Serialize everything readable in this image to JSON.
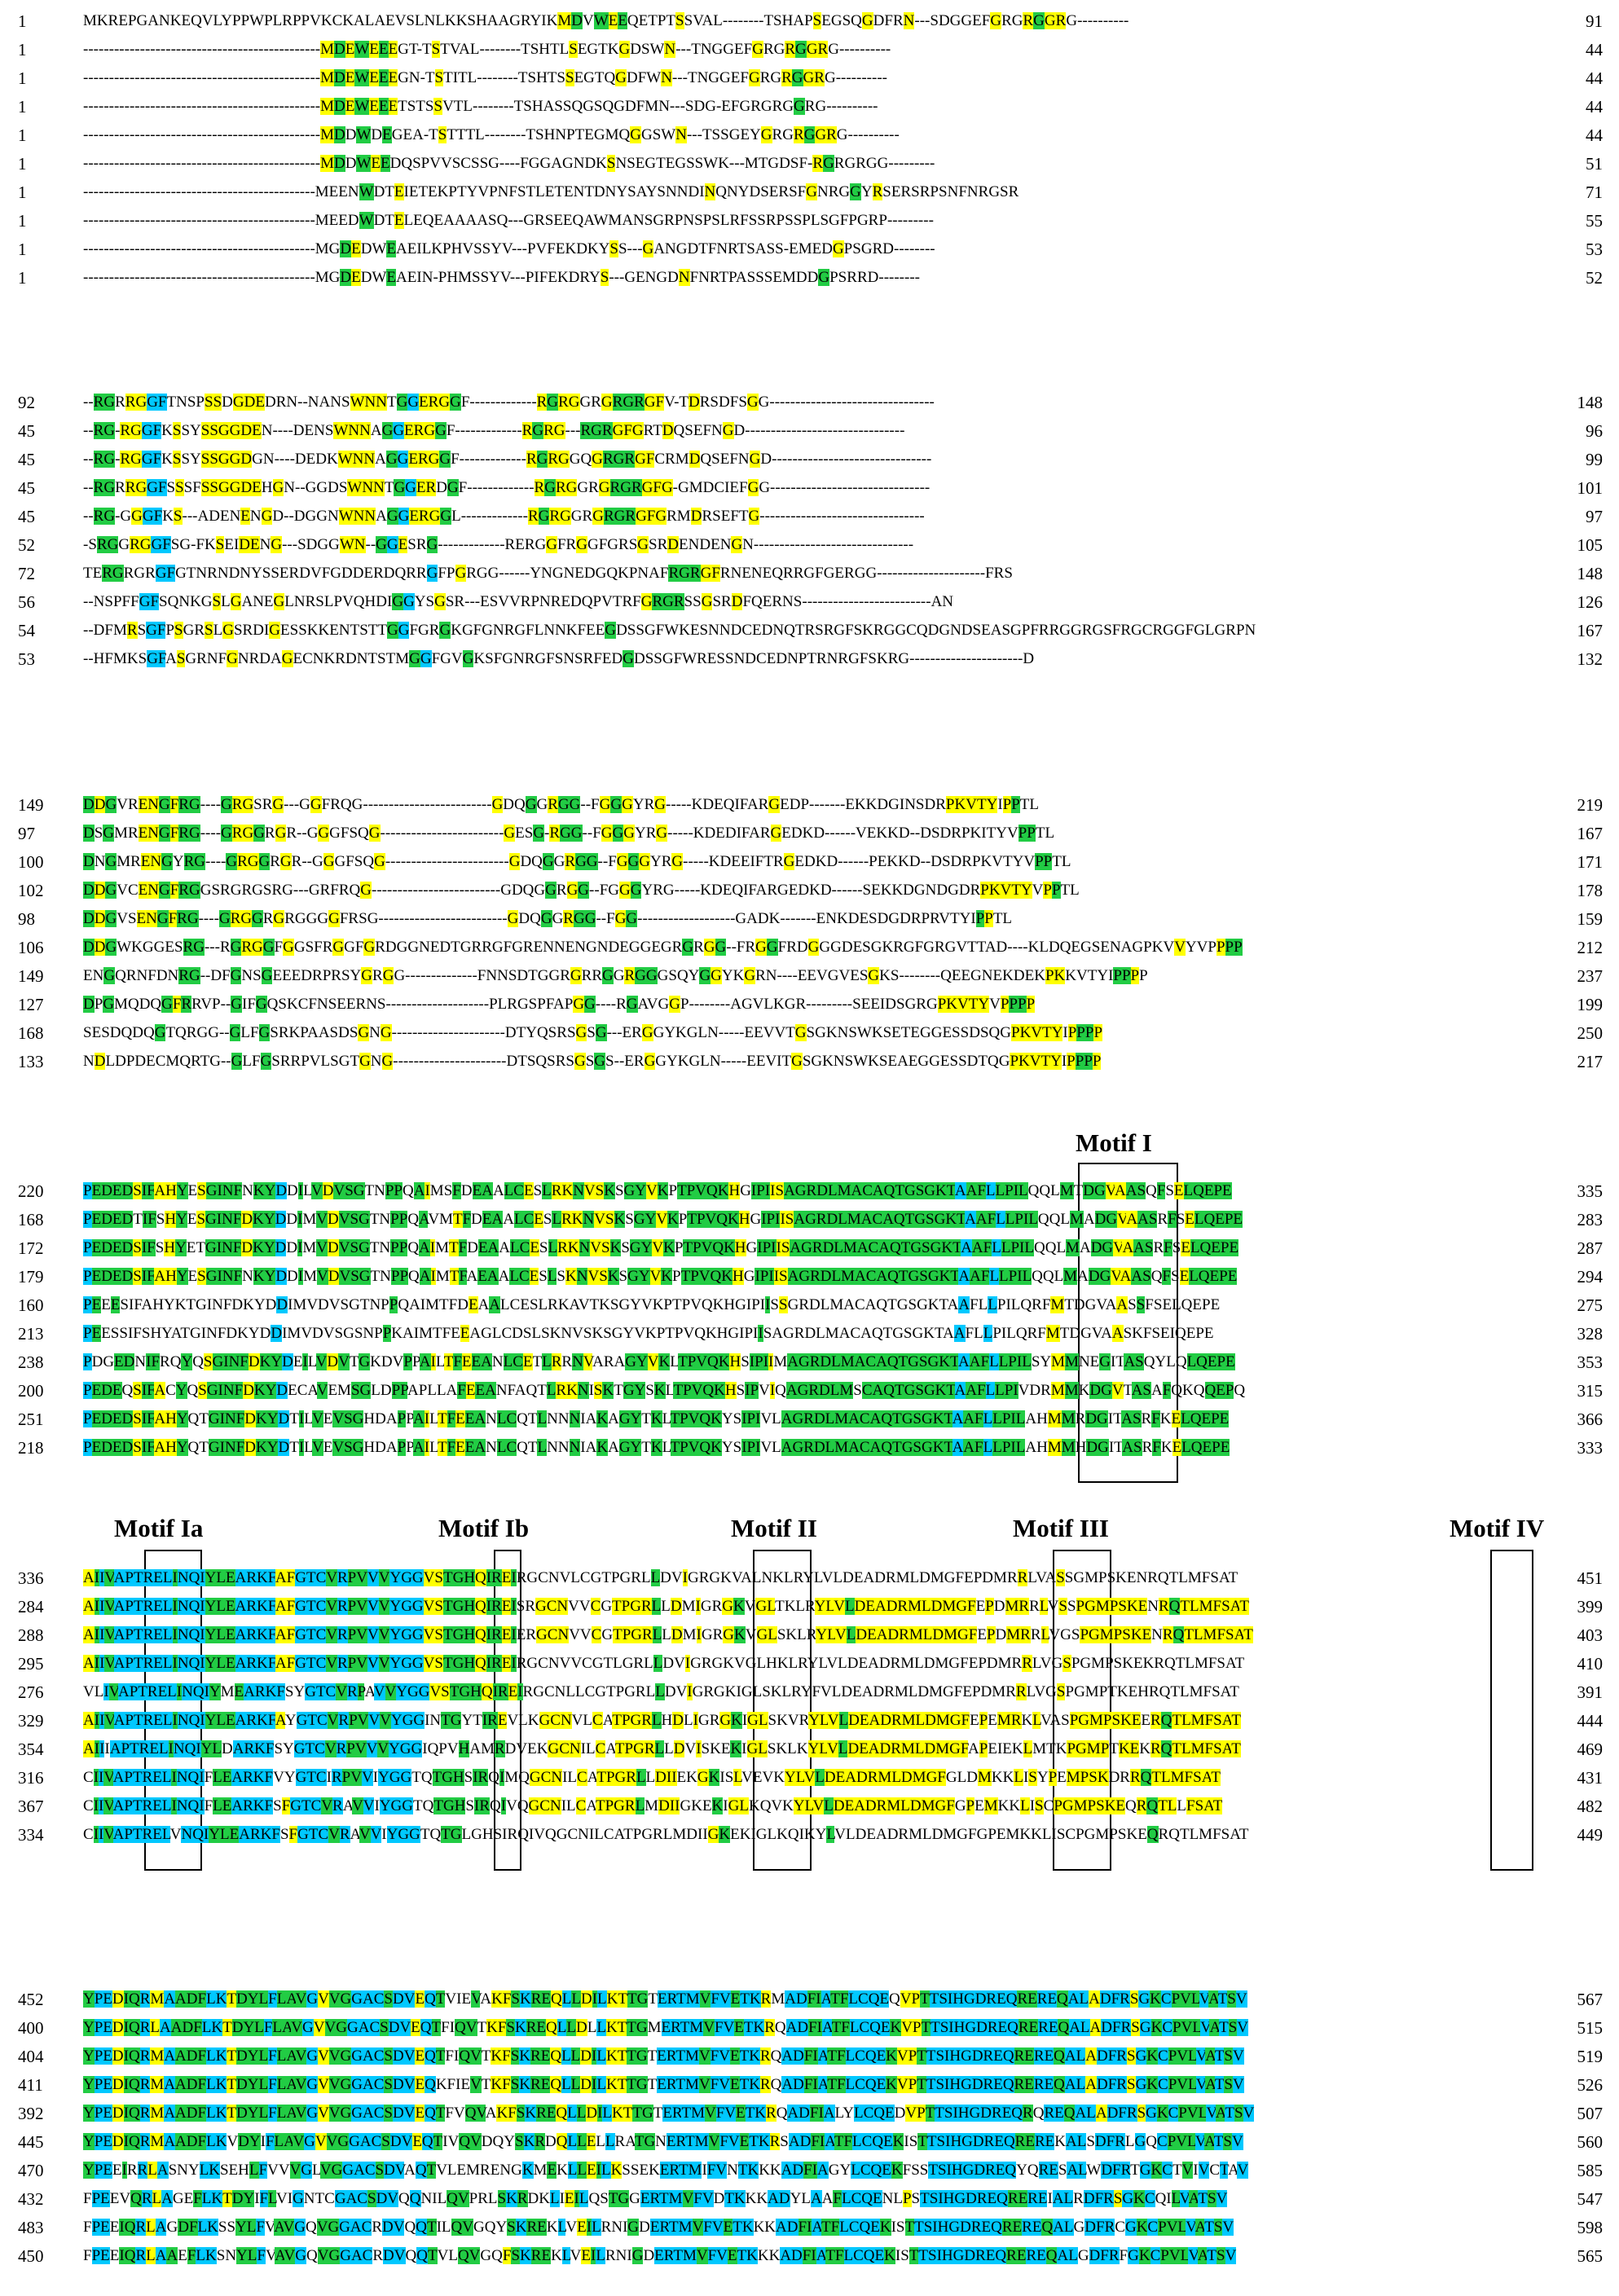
{
  "colors": {
    "full": "#00c8ff",
    "high": "#22cc44",
    "med": "#ffff00"
  },
  "blocks": [
    {
      "rows": [
        {
          "start": "1",
          "seq": "MKREPGANKEQVLYPPWPLRPPVKCKALAEVSLNLKKSHAAGRYIKMDVWEEQETPTSSVAL--------TSHAPSEGSQGDFRN---SDGGEFGRGRGGRG----------",
          "end": "91"
        },
        {
          "start": "1",
          "seq": "----------------------------------------------MDEWEEEGT-TSTVAL--------TSHTLSEGTKGDSWN---TNGGEFGRGRGGRG----------",
          "end": "44"
        },
        {
          "start": "1",
          "seq": "----------------------------------------------MDEWEEEGN-TSTITL--------TSHTSSEGTQGDFWN---TNGGEFGRGRGGRG----------",
          "end": "44"
        },
        {
          "start": "1",
          "seq": "----------------------------------------------MDEWEEETSTSSVTL--------TSHASSQGSQGDFMN---SDG-EFGRGRGGRG----------",
          "end": "44"
        },
        {
          "start": "1",
          "seq": "----------------------------------------------MDDWDEGEA-TSTTTL--------TSHNPTEGMQGGSWN---TSSGEYGRGRGGRG----------",
          "end": "44"
        },
        {
          "start": "1",
          "seq": "----------------------------------------------MDDWEEDQSPVVSCSSG----FGGAGNDKSNSEGTEGSSWK---MTGDSF-RGRGRGG---------",
          "end": "51"
        },
        {
          "start": "1",
          "seq": "---------------------------------------------MEENWDTEIETEKPTYVPNFSTLETENTDNYSAYSNNDINQNYDSERSFGNRGGYRSERSRPSNFNRGSR",
          "end": "71"
        },
        {
          "start": "1",
          "seq": "---------------------------------------------MEEDWDTELEQEAAAASQ---GRSEEQAWMANSGRPNSPSLRFSSRPSSPLSGFPGRP---------",
          "end": "55"
        },
        {
          "start": "1",
          "seq": "---------------------------------------------MGDEDWEAEILKPHVSSYV---PVFEKDKYSS---GANGDTFNRTSASS-EMEDGPSGRD--------",
          "end": "53"
        },
        {
          "start": "1",
          "seq": "---------------------------------------------MGDEDWEAEIN-PHMSSYV---PIFEKDRYS---GENGDNFNRTPASSSEMDDGPSRRD--------",
          "end": "52"
        }
      ]
    },
    {
      "rows": [
        {
          "start": "92",
          "seq": "--RGRRGGFTNSPSSDGDEDRN--NANSWNNTGGERGGF-------------RGRGGRGRGRGFV-TDRSDFSGG--------------------------------",
          "end": "148"
        },
        {
          "start": "45",
          "seq": "--RG-RGGFKSSYSSGGDEN----DENSWNNAGGERGGF-------------RGRG---RGRGFGRTDQSEFNGD-------------------------------",
          "end": "96"
        },
        {
          "start": "45",
          "seq": "--RG-RGGFKSSYSSGGDGN----DEDKWNNAGGERGGF-------------RGRGGQGRGRGFCRMDQSEFNGD-------------------------------",
          "end": "99"
        },
        {
          "start": "45",
          "seq": "--RGRRGGFSSSFSSGGDEHGN--GGDSWNNTGGERDGF-------------RGRGGRGRGRGFG-GMDCIEFGG-------------------------------",
          "end": "101"
        },
        {
          "start": "45",
          "seq": "--RG-GGGFKS---ADENENGD--DGGNWNNAGGERGGL-------------RGRGGRGRGRGFGRMDRSEFTG--------------------------------",
          "end": "97"
        },
        {
          "start": "52",
          "seq": "-SRGGRGGFSG-FKSEIDENG---SDGGWN--GGESRG-------------RERGGFRGGFGRSGSRDENDENGN-------------------------------",
          "end": "105"
        },
        {
          "start": "72",
          "seq": "TERGRGRGFGTNRNDNYSSERDVFGDDERDQRRGFPGRGG------YNGNEDGQKPNAFRGRGFRNENEQRRGFGERGG---------------------FRS",
          "end": "148"
        },
        {
          "start": "56",
          "seq": "--NSPFFGFSQNKGSLGANEGLNRSLPVQHDIGGYSGSR---ESVVRPNREDQPVTRFGRGRSSGSRDFQERNS-------------------------AN",
          "end": "126"
        },
        {
          "start": "54",
          "seq": "--DFMRSGFPSGRSLGSRDIGESSKKENTSTTGGFGRGKGFGNRGFLNNKFEEGDSSGFWKESNNDCEDNQTRSRGFSKRGGCQDGNDSEASGPFRRGGRGSFRGCRGGFGLGRPN",
          "end": "167"
        },
        {
          "start": "53",
          "seq": "--HFMKSGFASGRNFGNRDAGECNKRDNTSTMGGFGVGKSFGNRGFSNSRFEDGDSSGFWRESSNDCEDNPTRNRGFSKRG----------------------D",
          "end": "132"
        }
      ]
    },
    {
      "rows": [
        {
          "start": "149",
          "seq": "DDGVRENGFRG----GRGSRG---GGFRQG-------------------------GDQGGRGG--FGGGYRG-----KDEQIFARGEDP-------EKKDGINSDRPKVTYIPPTL",
          "end": "219"
        },
        {
          "start": "97",
          "seq": "DSGMRENGFRG----GRGGRGR--GGGFSQG------------------------GESG-RGG--FGGGYRG-----KDEDIFARGEDKD------VEKKD--DSDRPKITYVPPTL",
          "end": "167"
        },
        {
          "start": "100",
          "seq": "DNGMRENGYRG----GRGGRGR--GGGFSQG------------------------GDQGGRGG--FGGGYRG-----KDEEIFTRGEDKD------PEKKD--DSDRPKVTYVPPTL",
          "end": "171"
        },
        {
          "start": "102",
          "seq": "DDGVCENGFRGGSRGRGSRG---GRFRQG-------------------------GDQGGRGG--FGGGYRG-----KDEQIFARGEDKD------SEKKDGNDGDRPKVTYVPPTL",
          "end": "178"
        },
        {
          "start": "98",
          "seq": "DDGVSENGFRG----GRGGRGRGGGGFRSG-------------------------GDQGGRGG--FGG-------------------GADK-------ENKDESDGDRPRVTYIPPTL",
          "end": "159"
        },
        {
          "start": "106",
          "seq": "DDGWKGGESRG---RGRGGFGGSFRGGFGRDGGNEDTGRRGFGRENNENGNDEGGEGRGRGG--FRGGFRDGGGDESGKRGFGRGVTTAD----KLDQEGSENAGPKVVYVPPPP",
          "end": "212"
        },
        {
          "start": "149",
          "seq": "ENGQRNFDNRG--DFGNSGEEEDRPRSYGRGG--------------FNNSDTGGRGRRGGRGGGSQYGGYKGRN----EEVGVESGKS--------QEEGNEKDEKPKKVTYIPPPP",
          "end": "237"
        },
        {
          "start": "127",
          "seq": "DPGMQDQGFRRVP--GIFGQSKCFNSEERNS--------------------PLRGSPFAPGG----RGAVGGP--------AGVLKGR---------SEEIDSGRGPKVTYVPPPP",
          "end": "199"
        },
        {
          "start": "168",
          "seq": "SESDQDQGTQRGG--GLFGSRKPAASDSGNG----------------------DTYQSRSGSG---ERGGYKGLN-----EEVVTGSGKNSWKSETEGGESSDSQGPKVTYIPPPP",
          "end": "250"
        },
        {
          "start": "133",
          "seq": "NDLDPDECMQRTG--GLFGSRRPVLSGTGNG----------------------DTSQSRSGSGS--ERGGYKGLN-----EEVITGSGKNSWKSEAEGGESSDTQGPKVTYIPPPP",
          "end": "217"
        }
      ]
    },
    {
      "rows": [
        {
          "start": "220",
          "seq": "PEDEDSIFAHYESGINFNKYDDILVDVSGTNPPQAIMSFDEAALCESLRKNVSKSGYVKPTPVQKHGIPIISAGRDLMACAQTGSGKTAAFLLPILQQLMTDGVAASQFSELQEPE",
          "end": "335"
        },
        {
          "start": "168",
          "seq": "PEDEDTIFSHYESGINFDKYDDIMVDVSGTNPPQAVMTFDEAALCESLRKNVSKSGYVKPTPVQKHGIPIISAGRDLMACAQTGSGKTAAFLLPILQQLMADGVAASRFSELQEPE",
          "end": "283"
        },
        {
          "start": "172",
          "seq": "PEDEDSIFSHYETGINFDKYDDIMVDVSGTNPPQAIMTFDEAALCESLRKNVSKSGYVKPTPVQKHGIPIISAGRDLMACAQTGSGKTAAFLLPILQQLMADGVAASRFSELQEPE",
          "end": "287"
        },
        {
          "start": "179",
          "seq": "PEDEDSIFAHYESGINFNKYDDIMVDVSGTNPPQAIMTFAEAALCESLSKNVSKSGYVKPTPVQKHGIPIISAGRDLMACAQTGSGKTAAFLLPILQQLMADGVAASQFSELQEPE",
          "end": "294"
        },
        {
          "start": "160",
          "seq": "PEEESIFAHYKTGINFDKYDDIMVDVSGTNPPQAIMTFDEAALCESLRKAVTKSGYVKPTPVQKHGIPIISSGRDLMACAQTGSGKTAAFLLPILQRFMTDGVAASSFSELQEPE",
          "end": "275"
        },
        {
          "start": "213",
          "seq": "PEESSIFSHYATGINFDKYDDIMVDVSGSNPPKAIMTFEEAGLCDSLSKNVSKSGYVKPTPVQKHGIPIISAGRDLMACAQTGSGKTAAFLLPILQRFMTDGVAASKFSEIQEPE",
          "end": "328"
        },
        {
          "start": "238",
          "seq": "PDGEDNIFRQYQSGINFDKYDEILVDVTGKDVPPAILTFEEANLCETLRRNVARAGYVKLTPVQKHSIPIIMAGRDLMACAQTGSGKTAAFLLPILSYMMNEGITASQYLQLQEPE",
          "end": "353"
        },
        {
          "start": "200",
          "seq": "PEDEQSIFACYQSGINFDKYDECAVEMSGLDPPAPLLAFEEANFAQTLRKNISKTGYSKLTPVQKHSIPVIQAGRDLMSCAQTGSGKTAAFLLPIVDRMMKDGVTASAFQKQQEPQ",
          "end": "315"
        },
        {
          "start": "251",
          "seq": "PEDEDSIFAHYQTGINFDKYDTILVEVSGHDAPPAILTFEEANLCQTLNNNIAKAGYTKLTPVQKYSIPIVLAGRDLMACAQTGSGKTAAFLLPILAHMMRDGITASRFKELQEPE",
          "end": "366"
        },
        {
          "start": "218",
          "seq": "PEDEDSIFAHYQTGINFDKYDTILVEVSGHDAPPAILTFEEANLCQTLNNNIAKAGYTKLTPVQKYSIPIVLAGRDLMACAQTGSGKTAAFLLPILAHMMHDGITASRFKELQEPE",
          "end": "333"
        }
      ]
    },
    {
      "rows": [
        {
          "start": "336",
          "seq": "AIIVAPTRELINQIYLEARKFAFGTCVRPVVVYGGVSTGHQIREIRGCNVLCGTPGRLLDVIGRGKVALNKLRYLVLDEADRMLDMGFEPDMRRLVASSGMPSKENRQTLMFSAT",
          "end": "451"
        },
        {
          "start": "284",
          "seq": "AIIVAPTRELINQIYLEARKFAFGTCVRPVVVYGGVSTGHQIREISRGCNVVCGTPGRLLDMIGRGKVGLTKLRYLVLDEADRMLDMGFEPDMRRLVSSPGMPSKENRQTLMFSAT",
          "end": "399"
        },
        {
          "start": "288",
          "seq": "AIIVAPTRELINQIYLEARKFAFGTCVRPVVVYGGVSTGHQIREIERGCNVVCGTPGRLLDMIGRGKVGLSKLRYLVLDEADRMLDMGFEPDMRRLVGSPGMPSKENRQTLMFSAT",
          "end": "403"
        },
        {
          "start": "295",
          "seq": "AIIVAPTRELINQIYLEARKFAFGTCVRPVVVYGGVSTGHQIREIRGCNVVCGTLGRLLDVIGRGKVGLHKLRYLVLDEADRMLDMGFEPDMRRLVGSPGMPSKEKRQTLMFSAT",
          "end": "410"
        },
        {
          "start": "276",
          "seq": "VLIVAPTRELINQIYMEARKFSYGTCVRPAVVYGGVSTGHQIREIRGCNLLCGTPGRLLDVIGRGKIGLSKLRYFVLDEADRMLDMGFEPDMRRLVGSPGMPTKEHRQTLMFSAT",
          "end": "391"
        },
        {
          "start": "329",
          "seq": "AIIVAPTRELINQIYLEARKFAYGTCVRPVVVYGGINTGYTIREVLKGCNVLCATPGRLHDLIGRGKIGLSKVRYLVLDEADRMLDMGFEPEMRKLVASPGMPSKEERQTLMFSAT",
          "end": "444"
        },
        {
          "start": "354",
          "seq": "AIIIAPTRELINQIYLDARKFSYGTCVRPVVVYGGIQPVHAMRDVEKGCNILCATPGRLLDVISKEKIGLSKLKYLVLDEADRMLDMGFAPEIEKLMTKPGMPTKEKRQTLMFSAT",
          "end": "469"
        },
        {
          "start": "316",
          "seq": "CIIVAPTRELINQIFLEARKFVYGTCIRPVVIYGGTQTGHSIRQIMQGCNILCATPGRLLDIIEKGKISLVEVKYLVLDEADRMLDMGFGLDMKKLISYPEMPSKDRRQTLMFSAT",
          "end": "431"
        },
        {
          "start": "367",
          "seq": "CIIVAPTRELINQIFLEARKFSFGTCVRAVVIYGGTQTGHSIRQIVQGCNILCATPGRLMDIIGKEKIGLKQVKYLVLDEADRMLDMGFGPEMKKLISCPGMPSKEQRQTLLFSAT",
          "end": "482"
        },
        {
          "start": "334",
          "seq": "CIIVAPTRELVNQIYLEARKFSFGTCVRAVVIYGGTQTGLGHSIRQIVQGCNILCATPGRLMDIIGKEKIGLKQIKYLVLDEADRMLDMGFGPEMKKLISCPGMPSKEQRQTLMFSAT",
          "end": "449"
        }
      ]
    },
    {
      "rows": [
        {
          "start": "452",
          "seq": "YPEDIQRMAADFLKTDYLFLAVGVVGGACSDVEQTVIEVAKFSKREQLLDILKTTGTERTMVFVETKRMADFIATFLCQEQVPTTSIHGDREQREREQALADFRSGKCPVLVATSV",
          "end": "567"
        },
        {
          "start": "400",
          "seq": "YPEDIQRLAADFLKTDYLFLAVGVVGGACSDVEQTFIQVTKFSKREQLLDLLKTTGMERTMVFVETKRQADFIATFLCQEKVPTTSIHGDREQREREQALADFRSGKCPVLVATSV",
          "end": "515"
        },
        {
          "start": "404",
          "seq": "YPEDIQRMAADFLKTDYLFLAVGVVGGACSDVEQTFIQVTKFSKREQLLDILKTTGTERTMVFVETKRQADFIATFLCQEKVPTTSIHGDREQREREQALADFRSGKCPVLVATSV",
          "end": "519"
        },
        {
          "start": "411",
          "seq": "YPEDIQRMAADFLKTDYLFLAVGVVGGACSDVEQKFIEVTKFSKREQLLDILKTTGTERTMVFVETKRQADFIATFLCQEKVPTTSIHGDREQREREQALADFRSGKCPVLVATSV",
          "end": "526"
        },
        {
          "start": "392",
          "seq": "YPEDIQRMAADFLKTDYLFLAVGVVGGACSDVEQTFVQVAKFSKREQLLDILKTTGTERTMVFVETKRQADFIALYLCQEDVPTTSIHGDREQRQREQALADFRSGKCPVLVATSV",
          "end": "507"
        },
        {
          "start": "445",
          "seq": "YPEDIQRMAADFLKVDYIFLAVGVVGGACSDVEQTIVQVDQYSKRDQLLELLRATGNERTMVFVETKRSADFIATFLCQEKISTTSIHGDREQREREKALSDFRLGQCPVLVATSV",
          "end": "560"
        },
        {
          "start": "470",
          "seq": "YPEEIRRLASNYLKSEHLFVVVGLVGGACSDVAQTVLEMRENGKMEKLLEILKSSEKERTMIFVNTKKKADFIAGYLCQEKFSSTSIHGDREQYQRESALWDFRTGKCTVIVCTAV",
          "end": "585"
        },
        {
          "start": "432",
          "seq": "FPEEVQRLAGEFLKTDYIFLVIGNTCGACSDVQQNILQVPRLSKRDKLIEILQSTGGERTMVFVDTKKKADYLAAFLCQENLPSTSIHGDREQREREIALRDFRSGKCQILVATSV",
          "end": "547"
        },
        {
          "start": "483",
          "seq": "FPEEIQRLAGDFLKSSYLFVAVGQVGGACRDVQQTILQVGQYSKREKLVEILRNIGDERTMVFVETKKKADFIATFLCQEKISTTSIHGDREQREREQALGDFRCGKCPVLVATSV",
          "end": "598"
        },
        {
          "start": "450",
          "seq": "FPEEIQRLAAEFLKSNYLFVAVGQVGGACRDVQQTVLQVGQFSKREKLVEILRNIGDERTMVFVETKKKADFIATFLCQEKISTTSIHGDREQREREQALGDFRFGKCPVLVATSV",
          "end": "565"
        }
      ]
    }
  ],
  "motifs": [
    {
      "label": "Motif I"
    },
    {
      "label": "Motif Ia"
    },
    {
      "label": "Motif Ib"
    },
    {
      "label": "Motif II"
    },
    {
      "label": "Motif III"
    },
    {
      "label": "Motif IV"
    }
  ]
}
